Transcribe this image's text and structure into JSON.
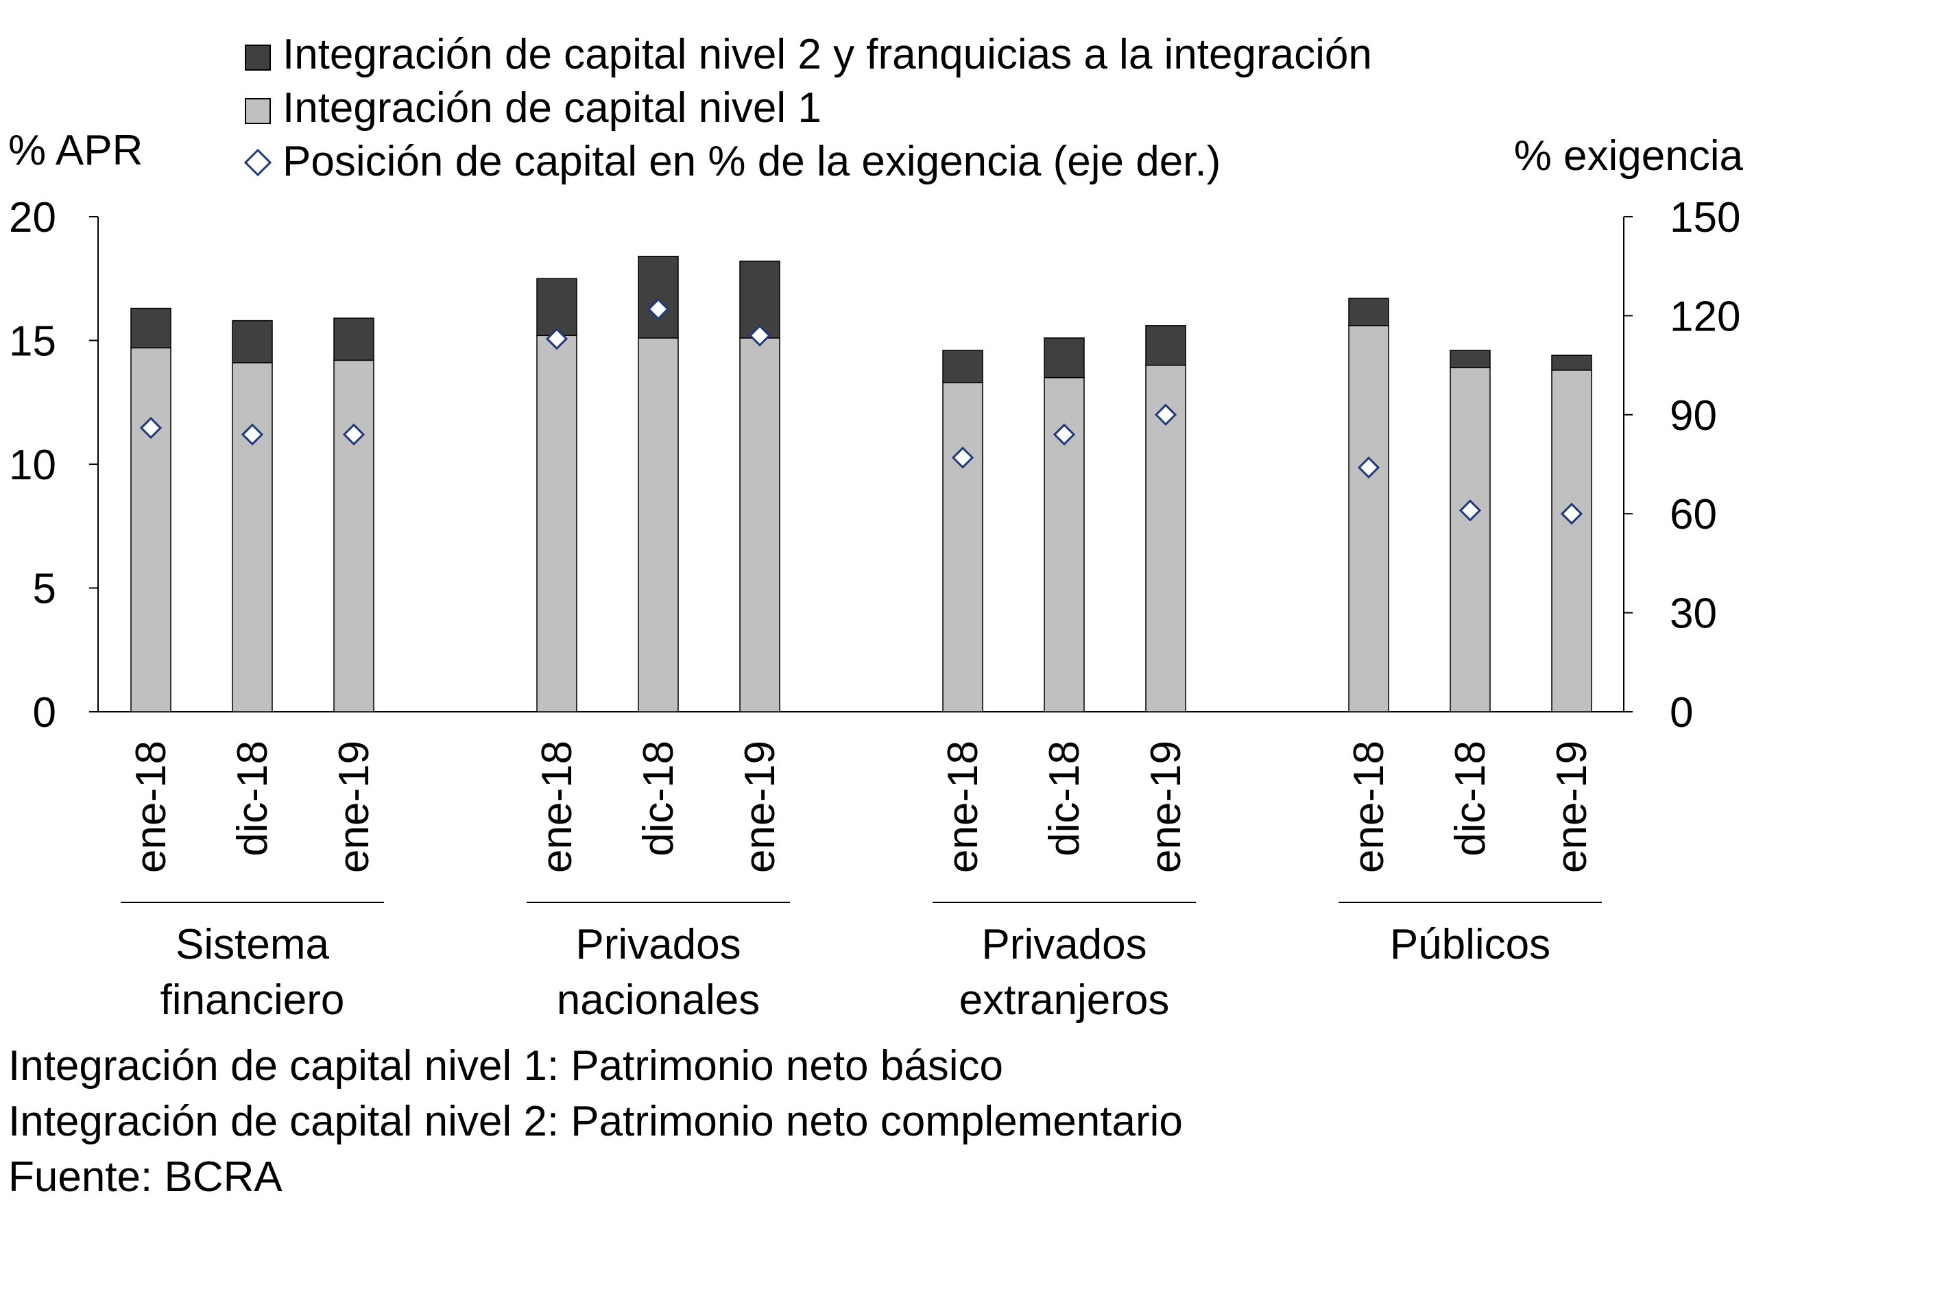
{
  "chart_data": {
    "type": "bar",
    "stacked": true,
    "left_axis": {
      "label": "% APR",
      "range": [
        0,
        20
      ],
      "ticks": [
        0,
        5,
        10,
        15,
        20
      ]
    },
    "right_axis": {
      "label": "% exigencia",
      "range": [
        0,
        150
      ],
      "ticks": [
        0,
        30,
        60,
        90,
        120,
        150
      ]
    },
    "legend": {
      "placement": "top",
      "entries": [
        {
          "key": "tier2",
          "label": "Integración de capital nivel 2 y franquicias a la integración"
        },
        {
          "key": "tier1",
          "label": "Integración de capital nivel 1"
        },
        {
          "key": "position",
          "label": "Posición de capital en % de la exigencia (eje der.)"
        }
      ]
    },
    "colors": {
      "tier1": "#c0c0c0",
      "tier2": "#404040",
      "diamond_stroke": "#1f3a7a",
      "diamond_fill": "#ffffff"
    },
    "groups": [
      {
        "name_lines": [
          "Sistema",
          "financiero"
        ],
        "periods": [
          "ene-18",
          "dic-18",
          "ene-19"
        ],
        "tier1": [
          14.7,
          14.1,
          14.2
        ],
        "tier2": [
          1.6,
          1.7,
          1.7
        ],
        "position": [
          86,
          84,
          84
        ]
      },
      {
        "name_lines": [
          "Privados",
          "nacionales"
        ],
        "periods": [
          "ene-18",
          "dic-18",
          "ene-19"
        ],
        "tier1": [
          15.2,
          15.1,
          15.1
        ],
        "tier2": [
          2.3,
          3.3,
          3.1
        ],
        "position": [
          113,
          122,
          114
        ]
      },
      {
        "name_lines": [
          "Privados",
          "extranjeros"
        ],
        "periods": [
          "ene-18",
          "dic-18",
          "ene-19"
        ],
        "tier1": [
          13.3,
          13.5,
          14.0
        ],
        "tier2": [
          1.3,
          1.6,
          1.6
        ],
        "position": [
          77,
          84,
          90
        ]
      },
      {
        "name_lines": [
          "Públicos"
        ],
        "periods": [
          "ene-18",
          "dic-18",
          "ene-19"
        ],
        "tier1": [
          15.6,
          13.9,
          13.8
        ],
        "tier2": [
          1.1,
          0.7,
          0.6
        ],
        "position": [
          74,
          61,
          60
        ]
      }
    ],
    "notes": [
      "Integración de capital nivel 1: Patrimonio neto básico",
      "Integración de capital nivel 2: Patrimonio neto complementario",
      "Fuente: BCRA"
    ]
  }
}
